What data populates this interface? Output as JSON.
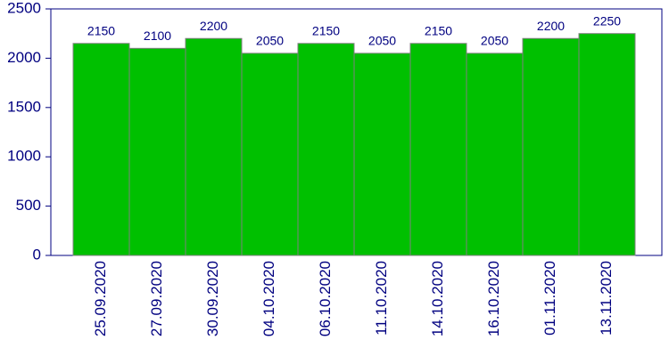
{
  "chart_data": {
    "type": "bar",
    "categories": [
      "25.09.2020",
      "27.09.2020",
      "30.09.2020",
      "04.10.2020",
      "06.10.2020",
      "11.10.2020",
      "14.10.2020",
      "16.10.2020",
      "01.11.2020",
      "13.11.2020"
    ],
    "values": [
      2150,
      2100,
      2200,
      2050,
      2150,
      2050,
      2150,
      2050,
      2200,
      2250
    ],
    "color": "#00c000",
    "ylim": [
      0,
      2500
    ],
    "yticks": [
      0,
      500,
      1000,
      1500,
      2000,
      2500
    ],
    "grid": false
  }
}
